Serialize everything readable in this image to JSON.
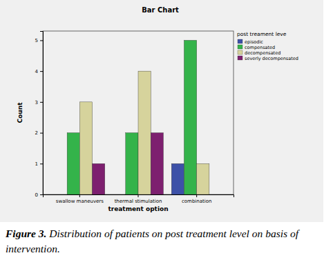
{
  "chart_data": {
    "type": "bar",
    "title": "Bar Chart",
    "x_label": "treatment option",
    "y_label": "Count",
    "legend_title": "post treament leve",
    "caption": [
      "Figure 3.",
      "Distribution of patients on post treatment level on basis of intervention."
    ],
    "categories": [
      "swallow maneuvers",
      "thermal stimulation",
      "combination"
    ],
    "series": [
      {
        "name": "episodic",
        "color": "#3d51a8",
        "values": [
          0,
          0,
          1
        ]
      },
      {
        "name": "compensated",
        "color": "#34b34a",
        "values": [
          2,
          2,
          5
        ]
      },
      {
        "name": "decompensated",
        "color": "#d6d39c",
        "values": [
          3,
          4,
          1
        ]
      },
      {
        "name": "severly decompensated",
        "color": "#7d1f6f",
        "values": [
          1,
          2,
          0
        ]
      }
    ],
    "ylim": [
      0,
      5.3
    ],
    "yticks": [
      0,
      1,
      2,
      3,
      4,
      5
    ],
    "grid": false,
    "legend": "right"
  }
}
